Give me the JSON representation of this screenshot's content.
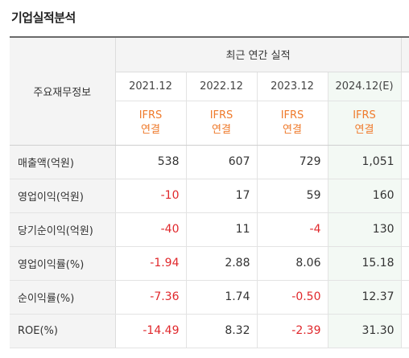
{
  "section_title": "기업실적분석",
  "header": {
    "label": "주요재무정보",
    "group": "최근 연간 실적",
    "years": [
      "2021.12",
      "2022.12",
      "2023.12",
      "2024.12(E)"
    ],
    "basis_top": "IFRS",
    "basis_bottom": "연결"
  },
  "rows": [
    {
      "label": "매출액(억원)",
      "values": [
        "538",
        "607",
        "729",
        "1,051"
      ]
    },
    {
      "label": "영업이익(억원)",
      "values": [
        "-10",
        "17",
        "59",
        "160"
      ]
    },
    {
      "label": "당기순이익(억원)",
      "values": [
        "-40",
        "11",
        "-4",
        "130"
      ]
    },
    {
      "label": "영업이익률(%)",
      "values": [
        "-1.94",
        "2.88",
        "8.06",
        "15.18"
      ]
    },
    {
      "label": "순이익률(%)",
      "values": [
        "-7.36",
        "1.74",
        "-0.50",
        "12.37"
      ]
    },
    {
      "label": "ROE(%)",
      "values": [
        "-14.49",
        "8.32",
        "-2.39",
        "31.30"
      ]
    }
  ],
  "colors": {
    "negative": "#e0282c",
    "basis": "#ef7a2b",
    "estimate_bg": "#f3f9f4"
  }
}
